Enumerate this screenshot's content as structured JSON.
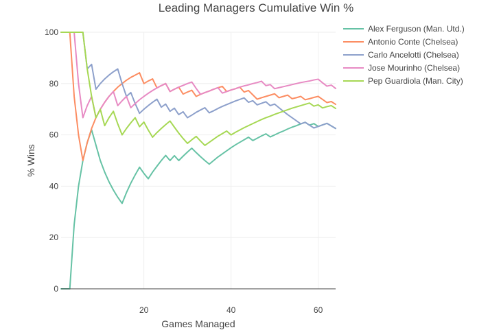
{
  "chart_data": {
    "type": "line",
    "title": "Leading Managers Cumulative Win %",
    "xlabel": "Games Managed",
    "ylabel": "% Wins",
    "xlim": [
      1,
      64
    ],
    "ylim": [
      0,
      100
    ],
    "xticks": [
      20,
      40,
      60
    ],
    "yticks": [
      0,
      20,
      40,
      60,
      80,
      100
    ],
    "grid": true,
    "legend_position": "top-right",
    "series": [
      {
        "name": "Alex  Ferguson (Man. Utd.)",
        "color": "#66c2a5",
        "x": [
          1,
          2,
          3,
          4,
          5,
          6,
          7,
          8,
          9,
          10,
          11,
          12,
          13,
          14,
          15,
          16,
          17,
          18,
          19,
          20,
          21,
          22,
          23,
          24,
          25,
          26,
          27,
          28,
          29,
          30,
          31,
          32,
          33,
          34,
          35,
          36,
          37,
          38,
          39,
          40,
          41,
          42,
          43,
          44,
          45,
          46,
          47,
          48,
          49,
          50,
          51,
          52,
          53,
          54,
          55,
          56,
          57,
          58,
          59,
          60,
          61,
          62,
          63,
          64
        ],
        "values": [
          0,
          0,
          0,
          25,
          40,
          50,
          57,
          62,
          56,
          50,
          45.5,
          41.7,
          38.5,
          35.7,
          33.3,
          37.5,
          41.2,
          44.4,
          47.4,
          45,
          42.9,
          45.5,
          47.8,
          50,
          52,
          50,
          51.9,
          50,
          51.7,
          53.3,
          54.8,
          53.1,
          51.5,
          50,
          48.6,
          50,
          51.4,
          52.6,
          53.8,
          55,
          56.1,
          57.1,
          58.1,
          59.1,
          57.8,
          58.7,
          59.6,
          60.4,
          59.2,
          60,
          60.8,
          61.5,
          62.3,
          63,
          63.6,
          64.3,
          64.9,
          63.8,
          64.4,
          63.3,
          63.9,
          64.5,
          63.5,
          62.5
        ]
      },
      {
        "name": "Antonio Conte (Chelsea)",
        "color": "#fc8d62",
        "x": [
          1,
          2,
          3,
          4,
          5,
          6,
          7,
          8,
          9,
          10,
          11,
          12,
          13,
          14,
          15,
          16,
          17,
          18,
          19,
          20,
          21,
          22,
          23,
          24,
          25,
          26,
          27,
          28,
          29,
          30,
          31,
          32,
          33,
          34,
          35,
          36,
          37,
          38,
          39,
          40,
          41,
          42,
          43,
          44,
          45,
          46,
          47,
          48,
          49,
          50,
          51,
          52,
          53,
          54,
          55,
          56,
          57,
          58,
          59,
          60,
          61,
          62,
          63,
          64
        ],
        "values": [
          100,
          100,
          100,
          75,
          60,
          50,
          57,
          62.5,
          66.7,
          70,
          72.7,
          75,
          76.9,
          78.6,
          80,
          81.3,
          82.4,
          83.3,
          84.2,
          80,
          81,
          81.8,
          78.3,
          79.2,
          80,
          76.9,
          77.8,
          78.6,
          75.9,
          76.7,
          77.4,
          75,
          75.8,
          76.5,
          77.1,
          77.8,
          78.4,
          78.9,
          76.9,
          77.5,
          78,
          78.6,
          76.7,
          77.3,
          75.6,
          73.9,
          74.5,
          75,
          75.5,
          76,
          74.5,
          75,
          75.5,
          74.1,
          74.5,
          75,
          73.7,
          74.1,
          74.6,
          75,
          73.8,
          72.6,
          73,
          71.9
        ]
      },
      {
        "name": "Carlo Ancelotti (Chelsea)",
        "color": "#8da0cb",
        "x": [
          1,
          2,
          3,
          4,
          5,
          6,
          7,
          8,
          9,
          10,
          11,
          12,
          13,
          14,
          15,
          16,
          17,
          18,
          19,
          20,
          21,
          22,
          23,
          24,
          25,
          26,
          27,
          28,
          29,
          30,
          31,
          32,
          33,
          34,
          35,
          36,
          37,
          38,
          39,
          40,
          41,
          42,
          43,
          44,
          45,
          46,
          47,
          48,
          49,
          50,
          51,
          52,
          53,
          54,
          55,
          56,
          57,
          58,
          59,
          60,
          61,
          62,
          63,
          64
        ],
        "values": [
          100,
          100,
          100,
          100,
          100,
          100,
          85.7,
          87.5,
          77.8,
          80,
          81.8,
          83.3,
          84.6,
          85.7,
          80,
          75,
          76.5,
          72.2,
          68.4,
          70,
          71.4,
          72.7,
          73.9,
          70.8,
          72,
          69.2,
          70.4,
          67.9,
          69,
          66.7,
          67.7,
          68.8,
          69.7,
          70.6,
          68.6,
          69.4,
          70.3,
          71.1,
          71.8,
          72.5,
          73.2,
          73.8,
          74.4,
          72.7,
          73.3,
          71.7,
          72.3,
          72.9,
          71.4,
          72,
          70.6,
          69.2,
          67.9,
          66.7,
          65.5,
          64.3,
          64.9,
          63.8,
          62.7,
          63.3,
          63.9,
          64.5,
          63.5,
          62.5
        ]
      },
      {
        "name": "Jose Mourinho (Chelsea)",
        "color": "#e78ac3",
        "x": [
          1,
          2,
          3,
          4,
          5,
          6,
          7,
          8,
          9,
          10,
          11,
          12,
          13,
          14,
          15,
          16,
          17,
          18,
          19,
          20,
          21,
          22,
          23,
          24,
          25,
          26,
          27,
          28,
          29,
          30,
          31,
          32,
          33,
          34,
          35,
          36,
          37,
          38,
          39,
          40,
          41,
          42,
          43,
          44,
          45,
          46,
          47,
          48,
          49,
          50,
          51,
          52,
          53,
          54,
          55,
          56,
          57,
          58,
          59,
          60,
          61,
          62,
          63,
          64
        ],
        "values": [
          100,
          100,
          100,
          100,
          80,
          66.7,
          71.4,
          75,
          66.7,
          70,
          72.7,
          75,
          76.9,
          71.4,
          73.3,
          75,
          70.6,
          72.2,
          73.7,
          75,
          76.2,
          77.3,
          78.3,
          79.2,
          80,
          76.9,
          77.8,
          78.6,
          79.3,
          80,
          80.6,
          78.1,
          75.8,
          76.5,
          77.1,
          77.8,
          78.4,
          76.3,
          76.9,
          77.5,
          78,
          78.6,
          79.1,
          79.5,
          80,
          80.4,
          80.9,
          79.2,
          79.6,
          78,
          78.4,
          78.8,
          79.2,
          79.6,
          80,
          80.4,
          80.7,
          81,
          81.4,
          81.7,
          80.3,
          79,
          79.4,
          78.1
        ]
      },
      {
        "name": "Pep Guardiola (Man. City)",
        "color": "#a6d854",
        "x": [
          1,
          2,
          3,
          4,
          5,
          6,
          7,
          8,
          9,
          10,
          11,
          12,
          13,
          14,
          15,
          16,
          17,
          18,
          19,
          20,
          21,
          22,
          23,
          24,
          25,
          26,
          27,
          28,
          29,
          30,
          31,
          32,
          33,
          34,
          35,
          36,
          37,
          38,
          39,
          40,
          41,
          42,
          43,
          44,
          45,
          46,
          47,
          48,
          49,
          50,
          51,
          52,
          53,
          54,
          55,
          56,
          57,
          58,
          59,
          60,
          61,
          62,
          63,
          64
        ],
        "values": [
          100,
          100,
          100,
          100,
          100,
          100,
          85.7,
          75,
          66.7,
          70,
          63.6,
          66.7,
          69.2,
          64.3,
          60,
          62.5,
          64.7,
          66.7,
          63.2,
          65,
          61.9,
          59.1,
          60.9,
          62.5,
          64,
          65.4,
          63,
          60.7,
          58.6,
          56.7,
          58.1,
          59.4,
          57.6,
          55.9,
          57.1,
          58.3,
          59.5,
          60.5,
          61.5,
          60,
          61,
          61.9,
          62.8,
          63.6,
          64.4,
          65.2,
          66,
          66.7,
          67.3,
          68,
          68.6,
          69.2,
          69.8,
          70.4,
          70.9,
          71.4,
          71.9,
          72.4,
          71.2,
          71.7,
          70.5,
          71,
          71.4,
          70.3
        ]
      }
    ]
  }
}
